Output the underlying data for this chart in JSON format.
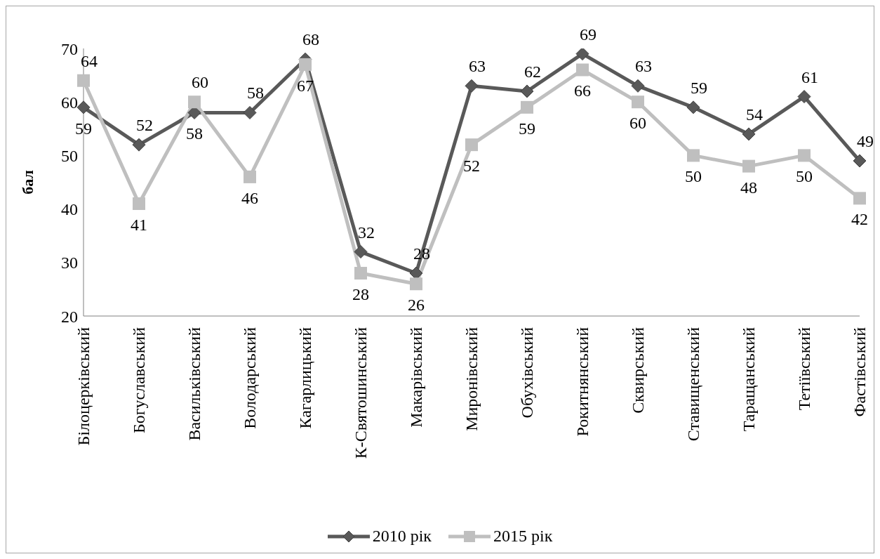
{
  "chart_data": {
    "type": "line",
    "ylabel": "бал",
    "categories": [
      "Білоцерківський",
      "Богуславський",
      "Васильківський",
      "Володарський",
      "Кагарлицький",
      "К-Святошинський",
      "Макарівський",
      "Миронівський",
      "Обухівський",
      "Рокитнянський",
      "Сквирський",
      "Ставищенський",
      "Таращанський",
      "Тетіївський",
      "Фастівський"
    ],
    "series": [
      {
        "name": "2010 рік",
        "color": "#595959",
        "marker": "diamond",
        "values": [
          59,
          52,
          58,
          58,
          68,
          32,
          28,
          63,
          62,
          69,
          63,
          59,
          54,
          61,
          49
        ]
      },
      {
        "name": "2015 рік",
        "color": "#bfbfbf",
        "marker": "square",
        "values": [
          64,
          41,
          60,
          46,
          67,
          28,
          26,
          52,
          59,
          66,
          60,
          50,
          48,
          50,
          42
        ]
      }
    ],
    "ylim": [
      20,
      70
    ],
    "yticks": [
      20,
      30,
      40,
      50,
      60,
      70
    ],
    "grid": false,
    "legend": "bottom",
    "data_labels": true
  }
}
